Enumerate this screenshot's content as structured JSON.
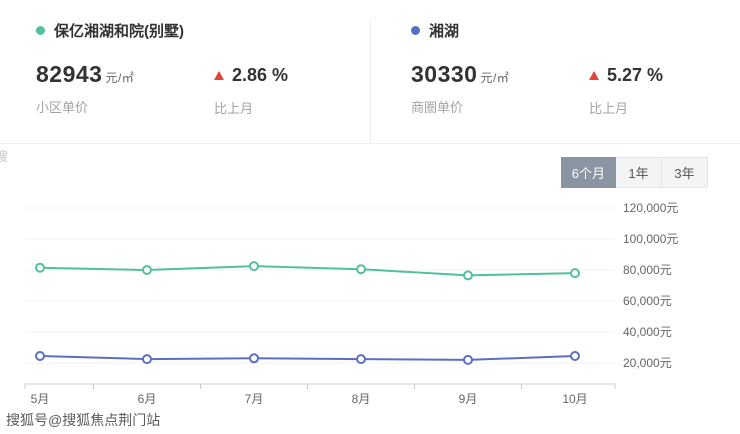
{
  "stats": {
    "left": {
      "title": "保亿湘湖和院(别墅)",
      "price": "82943",
      "unit": "元/㎡",
      "price_label": "小区单价",
      "change": "2.86 %",
      "change_label": "比上月",
      "dot_color": "#52bf9f"
    },
    "right": {
      "title": "湘湖",
      "price": "30330",
      "unit": "元/㎡",
      "price_label": "商圈单价",
      "change": "5.27 %",
      "change_label": "比上月",
      "dot_color": "#5b6fc0"
    }
  },
  "tabs": [
    {
      "label": "6个月",
      "active": true
    },
    {
      "label": "1年",
      "active": false
    },
    {
      "label": "3年",
      "active": false
    }
  ],
  "chart_data": {
    "type": "line",
    "categories": [
      "5月",
      "6月",
      "7月",
      "8月",
      "9月",
      "10月"
    ],
    "series": [
      {
        "name": "保亿湘湖和院(别墅)",
        "color": "#52bf9f",
        "values": [
          81500,
          80000,
          82500,
          80500,
          76500,
          78000
        ]
      },
      {
        "name": "湘湖",
        "color": "#5b6fc0",
        "values": [
          24500,
          22500,
          23000,
          22500,
          22000,
          24500
        ]
      }
    ],
    "y_ticks": [
      "120,000元",
      "100,000元",
      "80,000元",
      "60,000元",
      "40,000元",
      "20,000元"
    ],
    "y_tick_values": [
      120000,
      100000,
      80000,
      60000,
      40000,
      20000
    ],
    "ylim": [
      20000,
      120000
    ],
    "grid": true,
    "legend_position": "top-stat-cards",
    "marker": "hollow-circle"
  },
  "watermark": {
    "bottom": "搜狐号@搜狐焦点荆门站",
    "left_partial": "搜"
  },
  "colors": {
    "up_red": "#e0433a",
    "tab_active_bg": "#8b95a1",
    "axis_line": "#cccccc",
    "grid_line": "#f3f3f3"
  }
}
